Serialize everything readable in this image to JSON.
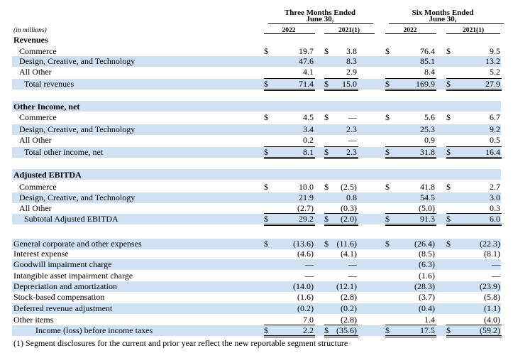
{
  "header": {
    "three_months_line1": "Three Months Ended",
    "three_months_line2": "June 30,",
    "six_months_line1": "Six Months Ended",
    "six_months_line2": "June 30,",
    "unit_note": "(in millions)",
    "col_2022_a": "2022",
    "col_2021_a": "2021(1)",
    "col_2022_b": "2022",
    "col_2021_b": "2021(1)"
  },
  "currency_symbol": "$",
  "sections": {
    "revenues": {
      "title": "Revenues",
      "rows": [
        {
          "label": "Commerce",
          "v": [
            "19.7",
            "3.8",
            "76.4",
            "9.5"
          ]
        },
        {
          "label": "Design, Creative, and Technology",
          "v": [
            "47.6",
            "8.3",
            "85.1",
            "13.2"
          ]
        },
        {
          "label": "All Other",
          "v": [
            "4.1",
            "2.9",
            "8.4",
            "5.2"
          ]
        },
        {
          "label": "Total revenues",
          "v": [
            "71.4",
            "15.0",
            "169.9",
            "27.9"
          ]
        }
      ]
    },
    "other_income": {
      "title": "Other Income, net",
      "rows": [
        {
          "label": "Commerce",
          "v": [
            "4.5",
            "—",
            "5.6",
            "6.7"
          ]
        },
        {
          "label": "Design, Creative, and Technology",
          "v": [
            "3.4",
            "2.3",
            "25.3",
            "9.2"
          ]
        },
        {
          "label": "All Other",
          "v": [
            "0.2",
            "—",
            "0.9",
            "0.5"
          ]
        },
        {
          "label": "Total other income, net",
          "v": [
            "8.1",
            "2.3",
            "31.8",
            "16.4"
          ]
        }
      ]
    },
    "adjusted_ebitda": {
      "title": "Adjusted EBITDA",
      "rows": [
        {
          "label": "Commerce",
          "v": [
            "10.0",
            "(2.5)",
            "41.8",
            "2.7"
          ]
        },
        {
          "label": "Design, Creative, and Technology",
          "v": [
            "21.9",
            "0.8",
            "54.5",
            "3.0"
          ]
        },
        {
          "label": "All Other",
          "v": [
            "(2.7)",
            "(0.3)",
            "(5.0)",
            "0.3"
          ]
        },
        {
          "label": "Subtotal Adjusted EBITDA",
          "v": [
            "29.2",
            "(2.0)",
            "91.3",
            "6.0"
          ]
        }
      ]
    },
    "reconciliation": {
      "rows": [
        {
          "label": "General corporate and other expenses",
          "v": [
            "(13.6)",
            "(11.6)",
            "(26.4)",
            "(22.3)"
          ]
        },
        {
          "label": "Interest expense",
          "v": [
            "(4.6)",
            "(4.1)",
            "(8.5)",
            "(8.1)"
          ]
        },
        {
          "label": "Goodwill impairment charge",
          "v": [
            "—",
            "—",
            "(6.3)",
            "—"
          ]
        },
        {
          "label": "Intangible asset impairment charge",
          "v": [
            "—",
            "—",
            "(1.6)",
            "—"
          ]
        },
        {
          "label": "Depreciation and amortization",
          "v": [
            "(14.0)",
            "(12.1)",
            "(28.3)",
            "(23.9)"
          ]
        },
        {
          "label": "Stock-based compensation",
          "v": [
            "(1.6)",
            "(2.8)",
            "(3.7)",
            "(5.8)"
          ]
        },
        {
          "label": "Deferred revenue adjustment",
          "v": [
            "(0.2)",
            "(0.2)",
            "(0.4)",
            "(1.1)"
          ]
        },
        {
          "label": "Other items",
          "v": [
            "7.0",
            "(2.8)",
            "1.4",
            "(4.0)"
          ]
        },
        {
          "label": "Income (loss) before income taxes",
          "v": [
            "2.2",
            "(35.6)",
            "17.5",
            "(59.2)"
          ]
        }
      ]
    }
  },
  "footnote": "(1) Segment disclosures for the current and prior year reflect the new reportable segment structure"
}
